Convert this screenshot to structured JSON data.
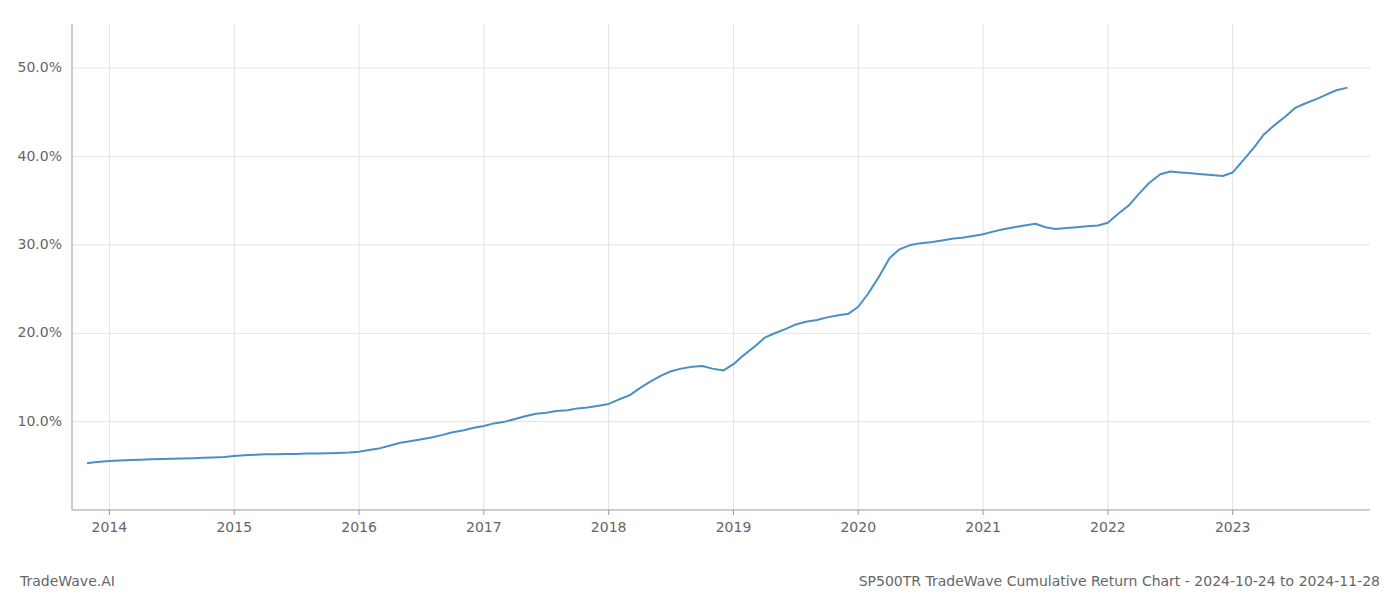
{
  "chart_data": {
    "type": "line",
    "title": "SP500TR TradeWave Cumulative Return Chart - 2024-10-24 to 2024-11-28",
    "annotations": [
      "TradeWave.AI"
    ],
    "color": "#4a90c4",
    "grid": true,
    "x": [
      2013.82,
      2013.88,
      2013.95,
      2014.0,
      2014.08,
      2014.17,
      2014.25,
      2014.33,
      2014.42,
      2014.5,
      2014.58,
      2014.67,
      2014.75,
      2014.83,
      2014.92,
      2015.0,
      2015.08,
      2015.17,
      2015.25,
      2015.33,
      2015.42,
      2015.5,
      2015.58,
      2015.67,
      2015.75,
      2015.83,
      2015.92,
      2016.0,
      2016.08,
      2016.17,
      2016.25,
      2016.33,
      2016.42,
      2016.5,
      2016.58,
      2016.67,
      2016.75,
      2016.83,
      2016.92,
      2017.0,
      2017.08,
      2017.17,
      2017.25,
      2017.33,
      2017.42,
      2017.5,
      2017.58,
      2017.67,
      2017.75,
      2017.83,
      2017.92,
      2018.0,
      2018.08,
      2018.17,
      2018.25,
      2018.33,
      2018.42,
      2018.5,
      2018.58,
      2018.67,
      2018.75,
      2018.83,
      2018.92,
      2019.0,
      2019.08,
      2019.17,
      2019.25,
      2019.33,
      2019.42,
      2019.5,
      2019.58,
      2019.67,
      2019.75,
      2019.83,
      2019.92,
      2020.0,
      2020.08,
      2020.17,
      2020.25,
      2020.33,
      2020.42,
      2020.5,
      2020.58,
      2020.67,
      2020.75,
      2020.83,
      2020.92,
      2021.0,
      2021.08,
      2021.17,
      2021.25,
      2021.33,
      2021.42,
      2021.5,
      2021.58,
      2021.67,
      2021.75,
      2021.83,
      2021.92,
      2022.0,
      2022.08,
      2022.17,
      2022.25,
      2022.33,
      2022.42,
      2022.5,
      2022.58,
      2022.67,
      2022.75,
      2022.83,
      2022.92,
      2023.0,
      2023.08,
      2023.17,
      2023.25,
      2023.33,
      2023.42,
      2023.5,
      2023.58,
      2023.67,
      2023.75,
      2023.83,
      2023.92
    ],
    "values": [
      5.3,
      5.4,
      5.5,
      5.55,
      5.6,
      5.65,
      5.7,
      5.75,
      5.78,
      5.8,
      5.83,
      5.87,
      5.9,
      5.95,
      6.0,
      6.1,
      6.2,
      6.25,
      6.3,
      6.32,
      6.33,
      6.35,
      6.38,
      6.4,
      6.42,
      6.45,
      6.5,
      6.6,
      6.8,
      7.0,
      7.3,
      7.6,
      7.8,
      8.0,
      8.2,
      8.5,
      8.8,
      9.0,
      9.3,
      9.5,
      9.8,
      10.0,
      10.3,
      10.6,
      10.9,
      11.0,
      11.2,
      11.3,
      11.5,
      11.6,
      11.8,
      12.0,
      12.5,
      13.0,
      13.8,
      14.5,
      15.2,
      15.7,
      16.0,
      16.2,
      16.3,
      16.0,
      15.8,
      16.5,
      17.5,
      18.5,
      19.5,
      20.0,
      20.5,
      21.0,
      21.3,
      21.5,
      21.8,
      22.0,
      22.2,
      23.0,
      24.5,
      26.5,
      28.5,
      29.5,
      30.0,
      30.2,
      30.3,
      30.5,
      30.7,
      30.8,
      31.0,
      31.2,
      31.5,
      31.8,
      32.0,
      32.2,
      32.4,
      32.0,
      31.8,
      31.9,
      32.0,
      32.1,
      32.2,
      32.5,
      33.5,
      34.5,
      35.8,
      37.0,
      38.0,
      38.3,
      38.2,
      38.1,
      38.0,
      37.9,
      37.8,
      38.2,
      39.5,
      41.0,
      42.5,
      43.5,
      44.5,
      45.5,
      46.0,
      46.5,
      47.0,
      47.5,
      47.8
    ],
    "xlim": [
      2013.7,
      2024.1
    ],
    "xticks": [
      2014,
      2015,
      2016,
      2017,
      2018,
      2019,
      2020,
      2021,
      2022,
      2023
    ],
    "ylim": [
      0,
      55
    ],
    "yticks": [
      {
        "value": 10.0,
        "label": "10.0%"
      },
      {
        "value": 20.0,
        "label": "20.0%"
      },
      {
        "value": 30.0,
        "label": "30.0%"
      },
      {
        "value": 40.0,
        "label": "40.0%"
      },
      {
        "value": 50.0,
        "label": "50.0%"
      }
    ]
  }
}
